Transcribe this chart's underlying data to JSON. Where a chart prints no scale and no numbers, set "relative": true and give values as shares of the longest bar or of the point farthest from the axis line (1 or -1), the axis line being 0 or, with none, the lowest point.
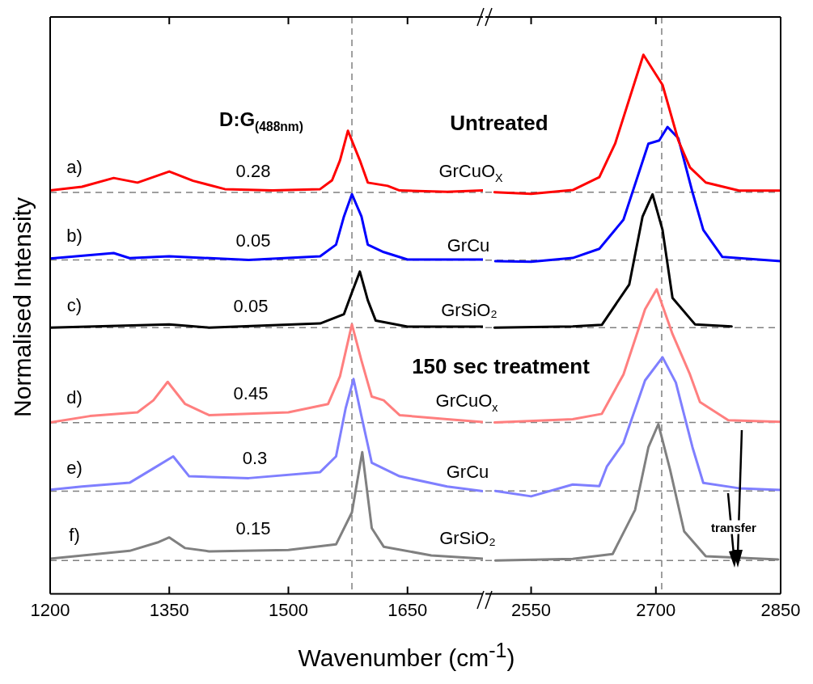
{
  "chart_data": [
    {
      "type": "line",
      "relative": true,
      "marker": "none",
      "line_style": "solid",
      "tick_labels": "x",
      "xlabel": "Wavenumber (cm$^{-1}$)",
      "ylabel": "Normalised Intensity",
      "xlim": [
        1200,
        1745
      ],
      "xticks": [
        1200,
        1350,
        1500,
        1650
      ],
      "series": [
        {
          "color": "#ff0000",
          "x": [
            1200,
            1240,
            1280,
            1310,
            1350,
            1380,
            1420,
            1480,
            1540,
            1555,
            1565,
            1575,
            1590,
            1600,
            1625,
            1640,
            1700,
            1745
          ],
          "values": [
            0.871,
            0.879,
            0.898,
            0.888,
            0.912,
            0.892,
            0.874,
            0.871,
            0.874,
            0.893,
            0.936,
            1,
            0.936,
            0.888,
            0.881,
            0.871,
            0.868,
            0.871
          ]
        },
        {
          "color": "#0000ff",
          "x": [
            1200,
            1280,
            1300,
            1350,
            1450,
            1540,
            1560,
            1570,
            1580,
            1592,
            1600,
            1620,
            1650,
            1745
          ],
          "values": [
            0.724,
            0.736,
            0.725,
            0.729,
            0.721,
            0.729,
            0.754,
            0.815,
            0.863,
            0.815,
            0.754,
            0.738,
            0.722,
            0.722
          ]
        },
        {
          "color": "#000000",
          "x": [
            1200,
            1350,
            1400,
            1540,
            1570,
            1580,
            1590,
            1600,
            1610,
            1650,
            1745
          ],
          "values": [
            0.575,
            0.582,
            0.575,
            0.584,
            0.604,
            0.651,
            0.696,
            0.634,
            0.59,
            0.577,
            0.577
          ]
        },
        {
          "color": "#ff7f7f",
          "x": [
            1200,
            1250,
            1310,
            1330,
            1348,
            1370,
            1400,
            1500,
            1550,
            1565,
            1580,
            1592,
            1605,
            1620,
            1640,
            1700,
            1745
          ],
          "values": [
            0.37,
            0.384,
            0.392,
            0.418,
            0.458,
            0.41,
            0.386,
            0.392,
            0.41,
            0.47,
            0.582,
            0.504,
            0.426,
            0.418,
            0.386,
            0.377,
            0.371
          ]
        },
        {
          "color": "#7f7fff",
          "x": [
            1200,
            1240,
            1300,
            1330,
            1355,
            1375,
            1450,
            1540,
            1560,
            1572,
            1582,
            1592,
            1605,
            1640,
            1700,
            1745
          ],
          "values": [
            0.225,
            0.232,
            0.24,
            0.271,
            0.297,
            0.254,
            0.25,
            0.263,
            0.297,
            0.4,
            0.464,
            0.384,
            0.283,
            0.254,
            0.232,
            0.222
          ]
        },
        {
          "color": "#808080",
          "x": [
            1200,
            1300,
            1335,
            1350,
            1370,
            1400,
            1500,
            1560,
            1580,
            1593,
            1605,
            1620,
            1680,
            1745
          ],
          "values": [
            0.076,
            0.093,
            0.111,
            0.122,
            0.099,
            0.092,
            0.095,
            0.107,
            0.176,
            0.306,
            0.142,
            0.102,
            0.083,
            0.076
          ]
        }
      ],
      "ref_lines": [
        {
          "axis": "y",
          "value": 0.867,
          "color": "#808080",
          "line_style": "dashed"
        },
        {
          "axis": "y",
          "value": 0.721,
          "color": "#808080",
          "line_style": "dashed"
        },
        {
          "axis": "y",
          "value": 0.575,
          "color": "#808080",
          "line_style": "dashed"
        },
        {
          "axis": "y",
          "value": 0.37,
          "color": "#808080",
          "line_style": "dashed"
        },
        {
          "axis": "y",
          "value": 0.222,
          "color": "#808080",
          "line_style": "dashed"
        },
        {
          "axis": "y",
          "value": 0.072,
          "color": "#808080",
          "line_style": "dashed"
        },
        {
          "axis": "x",
          "value": 1580,
          "color": "#808080",
          "line_style": "dashed"
        }
      ],
      "annotations": [
        "a)",
        "b)",
        "c)",
        "d)",
        "e)",
        "f)",
        "0.28",
        "0.05",
        "0.05",
        "0.45",
        "0.3",
        "0.15",
        "D:G$_{(488nm)}$",
        "GrCuO$_{X}$",
        "GrCu",
        "GrSiO₂",
        "GrCuO$_{x}$",
        "GrCu",
        "GrSiO₂"
      ]
    },
    {
      "type": "line",
      "relative": true,
      "marker": "none",
      "line_style": "solid",
      "tick_labels": "x",
      "xlim": [
        2495,
        2850
      ],
      "xticks": [
        2550,
        2700,
        2850
      ],
      "series": [
        {
          "color": "#ff0000",
          "x": [
            2506,
            2550,
            2600,
            2632,
            2651,
            2685,
            2708,
            2727,
            2741,
            2760,
            2800,
            2850
          ],
          "values": [
            0.745,
            0.742,
            0.749,
            0.773,
            0.835,
            1,
            0.944,
            0.841,
            0.791,
            0.763,
            0.748,
            0.748
          ]
        },
        {
          "color": "#0000ff",
          "x": [
            2507,
            2550,
            2600,
            2632,
            2661,
            2691,
            2704,
            2714,
            2727,
            2744,
            2757,
            2780,
            2850
          ],
          "values": [
            0.617,
            0.616,
            0.623,
            0.64,
            0.694,
            0.835,
            0.841,
            0.866,
            0.845,
            0.745,
            0.675,
            0.625,
            0.617
          ]
        },
        {
          "color": "#000000",
          "x": [
            2506,
            2600,
            2635,
            2668,
            2684,
            2696,
            2708,
            2720,
            2747,
            2791
          ],
          "values": [
            0.494,
            0.496,
            0.499,
            0.574,
            0.7,
            0.741,
            0.675,
            0.549,
            0.5,
            0.496
          ]
        },
        {
          "color": "#ff7f7f",
          "x": [
            2506,
            2600,
            2635,
            2661,
            2687,
            2701,
            2720,
            2741,
            2753,
            2787,
            2850
          ],
          "values": [
            0.318,
            0.324,
            0.334,
            0.407,
            0.528,
            0.565,
            0.482,
            0.407,
            0.356,
            0.322,
            0.319
          ]
        },
        {
          "color": "#7f7fff",
          "x": [
            2507,
            2550,
            2600,
            2632,
            2641,
            2661,
            2687,
            2708,
            2724,
            2744,
            2757,
            2800,
            2850
          ],
          "values": [
            0.191,
            0.181,
            0.203,
            0.2,
            0.236,
            0.28,
            0.396,
            0.439,
            0.392,
            0.272,
            0.206,
            0.196,
            0.193
          ]
        },
        {
          "color": "#808080",
          "x": [
            2507,
            2600,
            2648,
            2675,
            2691,
            2703,
            2717,
            2734,
            2760,
            2847
          ],
          "values": [
            0.062,
            0.065,
            0.074,
            0.156,
            0.272,
            0.315,
            0.231,
            0.116,
            0.07,
            0.064
          ]
        }
      ],
      "ref_lines": [
        {
          "axis": "y",
          "value": 0.745,
          "color": "#808080",
          "line_style": "dashed"
        },
        {
          "axis": "y",
          "value": 0.619,
          "color": "#808080",
          "line_style": "dashed"
        },
        {
          "axis": "y",
          "value": 0.494,
          "color": "#808080",
          "line_style": "dashed"
        },
        {
          "axis": "y",
          "value": 0.318,
          "color": "#808080",
          "line_style": "dashed"
        },
        {
          "axis": "y",
          "value": 0.191,
          "color": "#808080",
          "line_style": "dashed"
        },
        {
          "axis": "y",
          "value": 0.062,
          "color": "#808080",
          "line_style": "dashed"
        },
        {
          "axis": "x",
          "value": 2707,
          "color": "#808080",
          "line_style": "dashed"
        }
      ],
      "annotations": [
        "Untreated",
        "150 sec treatment",
        "transfer"
      ]
    }
  ]
}
